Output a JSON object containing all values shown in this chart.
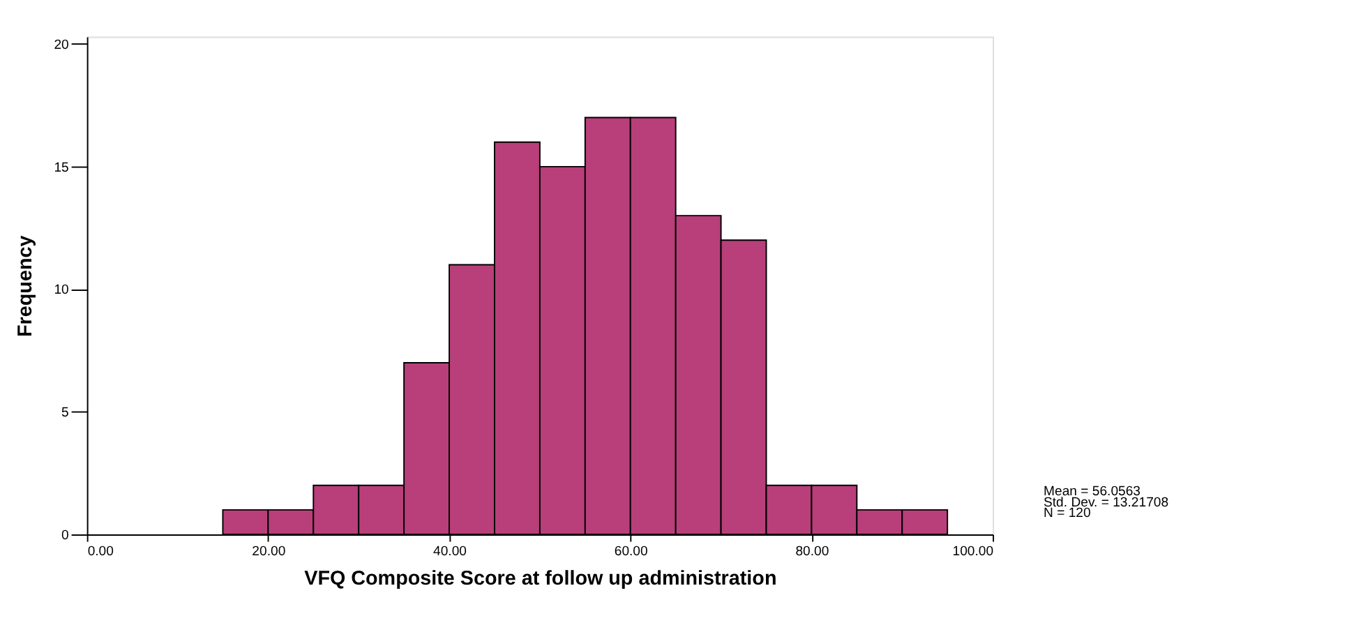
{
  "chart_data": {
    "type": "histogram",
    "xlabel": "VFQ Composite Score at follow up administration",
    "ylabel": "Frequency",
    "bins": [
      15,
      20,
      25,
      30,
      35,
      40,
      45,
      50,
      55,
      60,
      65,
      70,
      75,
      80,
      85,
      90,
      95
    ],
    "values": [
      1,
      1,
      2,
      2,
      7,
      11,
      16,
      15,
      17,
      17,
      13,
      12,
      2,
      2,
      1,
      1
    ],
    "color": "#b83f7a",
    "xlim": [
      0,
      100
    ],
    "xticks": [
      {
        "value": 0,
        "label": "0.00"
      },
      {
        "value": 20,
        "label": "20.00"
      },
      {
        "value": 40,
        "label": "40.00"
      },
      {
        "value": 60,
        "label": "60.00"
      },
      {
        "value": 80,
        "label": "80.00"
      },
      {
        "value": 100,
        "label": "100.00"
      }
    ],
    "ylim": [
      0,
      20.3
    ],
    "yticks": [
      0,
      5,
      10,
      15,
      20
    ],
    "grid": false,
    "annotations": [
      "Mean = 56.0563",
      "Std. Dev. = 13.21708",
      "N = 120"
    ]
  }
}
